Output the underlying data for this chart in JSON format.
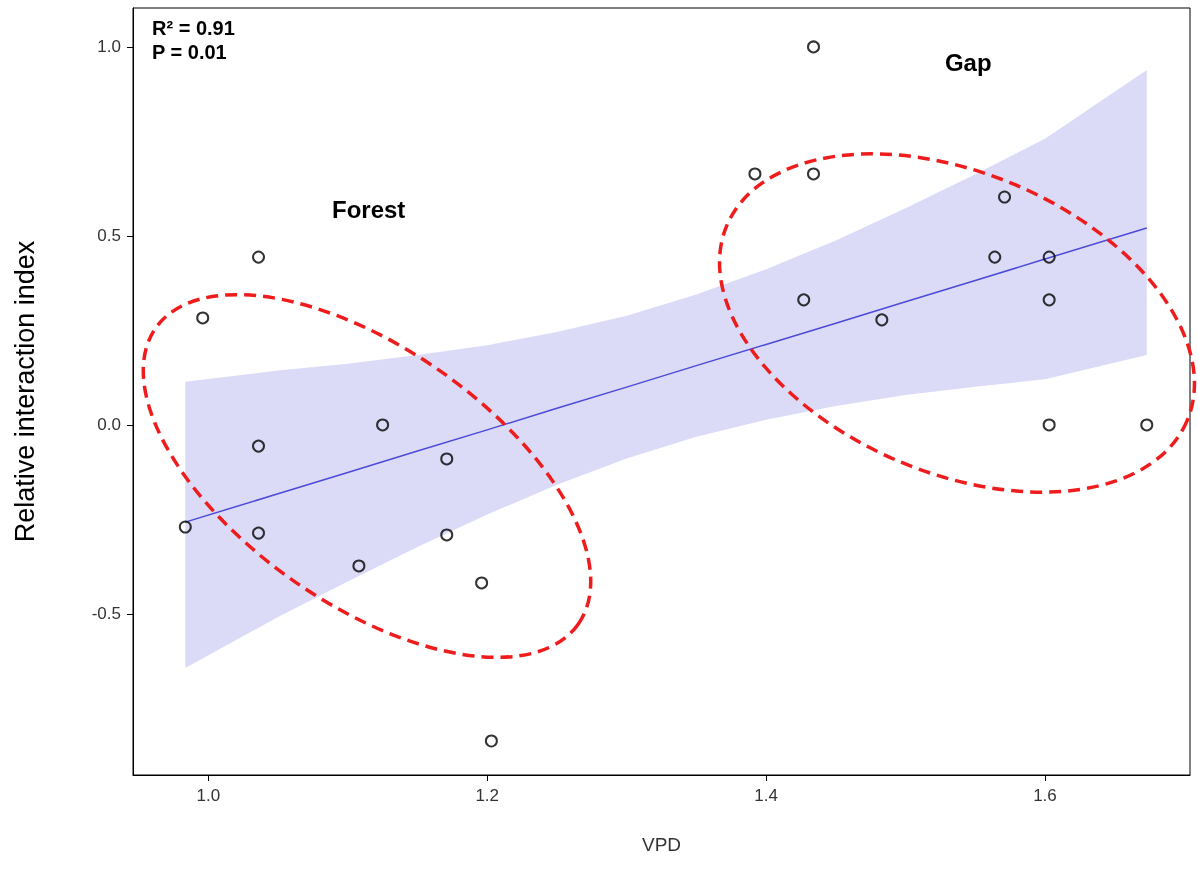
{
  "chart_data": {
    "type": "scatter",
    "xlabel": "VPD",
    "ylabel": "Relative interaction index",
    "annotations": [
      "R² = 0.91",
      "P = 0.01",
      "Forest",
      "Gap"
    ],
    "xlim": [
      0.946,
      1.704
    ],
    "ylim": [
      -0.926,
      1.103
    ],
    "xticks": [
      {
        "value": 1,
        "label": "1.0"
      },
      {
        "value": 1.2,
        "label": "1.2"
      },
      {
        "value": 1.4,
        "label": "1.4"
      },
      {
        "value": 1.6,
        "label": "1.6"
      }
    ],
    "yticks": [
      {
        "value": -0.5,
        "label": "-0.5"
      },
      {
        "value": 0,
        "label": "0.0"
      },
      {
        "value": 0.5,
        "label": "0.5"
      },
      {
        "value": 1,
        "label": "1.0"
      }
    ],
    "grid": false,
    "marker": "circle",
    "series": [
      {
        "type": "line",
        "color": "#4a4ad8",
        "marker": "none",
        "x": [
          0.9835,
          1.05,
          1.1,
          1.15,
          1.2,
          1.25,
          1.3,
          1.35,
          1.4,
          1.45,
          1.5,
          1.55,
          1.6,
          1.673
        ],
        "values": [
          -0.257,
          -0.182,
          -0.126,
          -0.069,
          -0.013,
          0.044,
          0.1,
          0.157,
          0.213,
          0.269,
          0.326,
          0.382,
          0.439,
          0.521
        ],
        "lower": [
          -0.643,
          -0.508,
          -0.414,
          -0.323,
          -0.237,
          -0.158,
          -0.089,
          -0.031,
          0.014,
          0.05,
          0.079,
          0.101,
          0.121,
          0.185
        ],
        "upper": [
          0.114,
          0.144,
          0.162,
          0.185,
          0.211,
          0.246,
          0.289,
          0.345,
          0.412,
          0.488,
          0.573,
          0.663,
          0.757,
          0.939
        ]
      },
      {
        "color": "#000000",
        "x": [
          0.9835,
          0.996,
          1.036,
          1.036,
          1.036,
          1.125,
          1.108,
          1.171,
          1.171,
          1.196,
          1.203,
          1.392,
          1.434,
          1.434,
          1.427,
          1.483,
          1.571,
          1.564,
          1.603,
          1.603,
          1.603,
          1.673
        ],
        "values": [
          -0.27,
          0.283,
          0.444,
          -0.056,
          -0.286,
          0.0,
          -0.373,
          -0.09,
          -0.291,
          -0.418,
          -0.836,
          0.664,
          1.0,
          0.664,
          0.331,
          0.278,
          0.603,
          0.444,
          0.444,
          0.331,
          0.0,
          0.0
        ]
      }
    ]
  }
}
